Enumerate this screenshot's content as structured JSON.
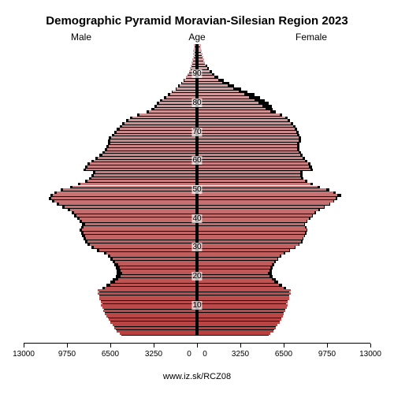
{
  "title": "Demographic Pyramid Moravian-Silesian Region 2023",
  "labels": {
    "male": "Male",
    "age": "Age",
    "female": "Female"
  },
  "source": "www.iz.sk/RCZ08",
  "chart": {
    "type": "population-pyramid",
    "xmax": 13000,
    "xtick_step": 3250,
    "xticks": [
      13000,
      9750,
      6500,
      3250,
      0,
      0,
      3250,
      6500,
      9750,
      13000
    ],
    "age_ticks": [
      10,
      20,
      30,
      40,
      50,
      60,
      70,
      80,
      90
    ],
    "background_color": "#ffffff",
    "shadow_color": "#000000",
    "color_top": "#d8abae",
    "color_bottom": "#b8403f",
    "title_fontsize": 15,
    "label_fontsize": 12,
    "tick_fontsize": 10,
    "ages": [
      {
        "a": 0,
        "m": 5700,
        "f": 5400,
        "ms": 5700,
        "fs": 5400
      },
      {
        "a": 1,
        "m": 5900,
        "f": 5600,
        "ms": 5900,
        "fs": 5600
      },
      {
        "a": 2,
        "m": 6100,
        "f": 5800,
        "ms": 6100,
        "fs": 5800
      },
      {
        "a": 3,
        "m": 6200,
        "f": 5900,
        "ms": 6200,
        "fs": 5900
      },
      {
        "a": 4,
        "m": 6400,
        "f": 6100,
        "ms": 6400,
        "fs": 6100
      },
      {
        "a": 5,
        "m": 6500,
        "f": 6200,
        "ms": 6500,
        "fs": 6200
      },
      {
        "a": 6,
        "m": 6700,
        "f": 6300,
        "ms": 6700,
        "fs": 6300
      },
      {
        "a": 7,
        "m": 6800,
        "f": 6400,
        "ms": 6800,
        "fs": 6400
      },
      {
        "a": 8,
        "m": 6900,
        "f": 6500,
        "ms": 6900,
        "fs": 6500
      },
      {
        "a": 9,
        "m": 7000,
        "f": 6600,
        "ms": 7000,
        "fs": 6600
      },
      {
        "a": 10,
        "m": 7100,
        "f": 6700,
        "ms": 7100,
        "fs": 6700
      },
      {
        "a": 11,
        "m": 7100,
        "f": 6700,
        "ms": 7100,
        "fs": 6700
      },
      {
        "a": 12,
        "m": 7200,
        "f": 6800,
        "ms": 7200,
        "fs": 6800
      },
      {
        "a": 13,
        "m": 7200,
        "f": 6800,
        "ms": 7200,
        "fs": 6800
      },
      {
        "a": 14,
        "m": 7300,
        "f": 6900,
        "ms": 7300,
        "fs": 6900
      },
      {
        "a": 15,
        "m": 7300,
        "f": 6900,
        "ms": 7300,
        "fs": 6900
      },
      {
        "a": 16,
        "m": 6800,
        "f": 6400,
        "ms": 7100,
        "fs": 6700
      },
      {
        "a": 17,
        "m": 6400,
        "f": 6000,
        "ms": 6800,
        "fs": 6400
      },
      {
        "a": 18,
        "m": 6000,
        "f": 5700,
        "ms": 6500,
        "fs": 6100
      },
      {
        "a": 19,
        "m": 5800,
        "f": 5500,
        "ms": 6300,
        "fs": 5900
      },
      {
        "a": 20,
        "m": 5600,
        "f": 5300,
        "ms": 6100,
        "fs": 5700
      },
      {
        "a": 21,
        "m": 5500,
        "f": 5200,
        "ms": 6000,
        "fs": 5600
      },
      {
        "a": 22,
        "m": 5600,
        "f": 5300,
        "ms": 6000,
        "fs": 5600
      },
      {
        "a": 23,
        "m": 5700,
        "f": 5400,
        "ms": 6100,
        "fs": 5700
      },
      {
        "a": 24,
        "m": 5800,
        "f": 5500,
        "ms": 6200,
        "fs": 5800
      },
      {
        "a": 25,
        "m": 6000,
        "f": 5700,
        "ms": 6300,
        "fs": 5900
      },
      {
        "a": 26,
        "m": 6200,
        "f": 5900,
        "ms": 6500,
        "fs": 6100
      },
      {
        "a": 27,
        "m": 6400,
        "f": 6100,
        "ms": 6700,
        "fs": 6300
      },
      {
        "a": 28,
        "m": 6700,
        "f": 6400,
        "ms": 7000,
        "fs": 6600
      },
      {
        "a": 29,
        "m": 7200,
        "f": 6800,
        "ms": 7500,
        "fs": 7000
      },
      {
        "a": 30,
        "m": 7600,
        "f": 7200,
        "ms": 7900,
        "fs": 7400
      },
      {
        "a": 31,
        "m": 7900,
        "f": 7500,
        "ms": 8200,
        "fs": 7700
      },
      {
        "a": 32,
        "m": 8100,
        "f": 7700,
        "ms": 8400,
        "fs": 7900
      },
      {
        "a": 33,
        "m": 8200,
        "f": 7800,
        "ms": 8500,
        "fs": 8000
      },
      {
        "a": 34,
        "m": 8300,
        "f": 7900,
        "ms": 8600,
        "fs": 8100
      },
      {
        "a": 35,
        "m": 8400,
        "f": 8000,
        "ms": 8700,
        "fs": 8200
      },
      {
        "a": 36,
        "m": 8500,
        "f": 8100,
        "ms": 8800,
        "fs": 8300
      },
      {
        "a": 37,
        "m": 8400,
        "f": 8000,
        "ms": 8700,
        "fs": 8200
      },
      {
        "a": 38,
        "m": 8300,
        "f": 7900,
        "ms": 8600,
        "fs": 8100
      },
      {
        "a": 39,
        "m": 8500,
        "f": 8100,
        "ms": 8800,
        "fs": 8300
      },
      {
        "a": 40,
        "m": 8700,
        "f": 8300,
        "ms": 9000,
        "fs": 8500
      },
      {
        "a": 41,
        "m": 8900,
        "f": 8500,
        "ms": 9200,
        "fs": 8700
      },
      {
        "a": 42,
        "m": 9100,
        "f": 8700,
        "ms": 9400,
        "fs": 8900
      },
      {
        "a": 43,
        "m": 9400,
        "f": 9000,
        "ms": 9700,
        "fs": 9200
      },
      {
        "a": 44,
        "m": 9800,
        "f": 9400,
        "ms": 10100,
        "fs": 9600
      },
      {
        "a": 45,
        "m": 10200,
        "f": 9800,
        "ms": 10500,
        "fs": 10000
      },
      {
        "a": 46,
        "m": 10600,
        "f": 10100,
        "ms": 10900,
        "fs": 10300
      },
      {
        "a": 47,
        "m": 10800,
        "f": 10300,
        "ms": 11100,
        "fs": 10500
      },
      {
        "a": 48,
        "m": 10700,
        "f": 10400,
        "ms": 11000,
        "fs": 10800
      },
      {
        "a": 49,
        "m": 10400,
        "f": 10100,
        "ms": 10700,
        "fs": 10400
      },
      {
        "a": 50,
        "m": 9900,
        "f": 9600,
        "ms": 10200,
        "fs": 9900
      },
      {
        "a": 51,
        "m": 9200,
        "f": 8900,
        "ms": 9500,
        "fs": 9200
      },
      {
        "a": 52,
        "m": 8600,
        "f": 8400,
        "ms": 8900,
        "fs": 8700
      },
      {
        "a": 53,
        "m": 8100,
        "f": 8000,
        "ms": 8400,
        "fs": 8300
      },
      {
        "a": 54,
        "m": 7800,
        "f": 7700,
        "ms": 8100,
        "fs": 8000
      },
      {
        "a": 55,
        "m": 7600,
        "f": 7600,
        "ms": 7900,
        "fs": 7900
      },
      {
        "a": 56,
        "m": 7500,
        "f": 7600,
        "ms": 7800,
        "fs": 7900
      },
      {
        "a": 57,
        "m": 8200,
        "f": 8400,
        "ms": 8500,
        "fs": 8700
      },
      {
        "a": 58,
        "m": 8100,
        "f": 8300,
        "ms": 8400,
        "fs": 8600
      },
      {
        "a": 59,
        "m": 7900,
        "f": 8200,
        "ms": 8200,
        "fs": 8500
      },
      {
        "a": 60,
        "m": 7600,
        "f": 8000,
        "ms": 7900,
        "fs": 8300
      },
      {
        "a": 61,
        "m": 7300,
        "f": 7800,
        "ms": 7600,
        "fs": 8100
      },
      {
        "a": 62,
        "m": 7000,
        "f": 7600,
        "ms": 7300,
        "fs": 7900
      },
      {
        "a": 63,
        "m": 6800,
        "f": 7500,
        "ms": 7100,
        "fs": 7800
      },
      {
        "a": 64,
        "m": 6600,
        "f": 7400,
        "ms": 6900,
        "fs": 7700
      },
      {
        "a": 65,
        "m": 6500,
        "f": 7400,
        "ms": 6800,
        "fs": 7700
      },
      {
        "a": 66,
        "m": 6400,
        "f": 7400,
        "ms": 6700,
        "fs": 7700
      },
      {
        "a": 67,
        "m": 6400,
        "f": 7500,
        "ms": 6700,
        "fs": 7800
      },
      {
        "a": 68,
        "m": 6300,
        "f": 7500,
        "ms": 6600,
        "fs": 7800
      },
      {
        "a": 69,
        "m": 6100,
        "f": 7400,
        "ms": 6400,
        "fs": 7700
      },
      {
        "a": 70,
        "m": 5900,
        "f": 7300,
        "ms": 6200,
        "fs": 7600
      },
      {
        "a": 71,
        "m": 5700,
        "f": 7200,
        "ms": 6000,
        "fs": 7500
      },
      {
        "a": 72,
        "m": 5500,
        "f": 7100,
        "ms": 5800,
        "fs": 7400
      },
      {
        "a": 73,
        "m": 5300,
        "f": 6900,
        "ms": 5600,
        "fs": 7200
      },
      {
        "a": 74,
        "m": 5000,
        "f": 6700,
        "ms": 5300,
        "fs": 7000
      },
      {
        "a": 75,
        "m": 4700,
        "f": 6500,
        "ms": 5000,
        "fs": 6800
      },
      {
        "a": 76,
        "m": 4200,
        "f": 6100,
        "ms": 4500,
        "fs": 6400
      },
      {
        "a": 77,
        "m": 3500,
        "f": 5400,
        "ms": 3800,
        "fs": 5900
      },
      {
        "a": 78,
        "m": 3100,
        "f": 5000,
        "ms": 3400,
        "fs": 5700
      },
      {
        "a": 79,
        "m": 2900,
        "f": 4800,
        "ms": 3200,
        "fs": 5600
      },
      {
        "a": 80,
        "m": 2700,
        "f": 4500,
        "ms": 3000,
        "fs": 5400
      },
      {
        "a": 81,
        "m": 2500,
        "f": 4200,
        "ms": 2800,
        "fs": 5100
      },
      {
        "a": 82,
        "m": 2200,
        "f": 3800,
        "ms": 2500,
        "fs": 4700
      },
      {
        "a": 83,
        "m": 1900,
        "f": 3400,
        "ms": 2200,
        "fs": 4300
      },
      {
        "a": 84,
        "m": 1700,
        "f": 3000,
        "ms": 1900,
        "fs": 3800
      },
      {
        "a": 85,
        "m": 1400,
        "f": 2600,
        "ms": 1600,
        "fs": 3300
      },
      {
        "a": 86,
        "m": 1200,
        "f": 2200,
        "ms": 1400,
        "fs": 2800
      },
      {
        "a": 87,
        "m": 1000,
        "f": 1800,
        "ms": 1200,
        "fs": 2400
      },
      {
        "a": 88,
        "m": 800,
        "f": 1500,
        "ms": 1000,
        "fs": 2000
      },
      {
        "a": 89,
        "m": 700,
        "f": 1200,
        "ms": 800,
        "fs": 1600
      },
      {
        "a": 90,
        "m": 600,
        "f": 1000,
        "ms": 700,
        "fs": 1300
      },
      {
        "a": 91,
        "m": 500,
        "f": 800,
        "ms": 600,
        "fs": 1100
      },
      {
        "a": 92,
        "m": 400,
        "f": 650,
        "ms": 500,
        "fs": 900
      },
      {
        "a": 93,
        "m": 350,
        "f": 550,
        "ms": 400,
        "fs": 750
      },
      {
        "a": 94,
        "m": 300,
        "f": 450,
        "ms": 350,
        "fs": 600
      },
      {
        "a": 95,
        "m": 250,
        "f": 400,
        "ms": 300,
        "fs": 500
      },
      {
        "a": 96,
        "m": 200,
        "f": 350,
        "ms": 250,
        "fs": 420
      },
      {
        "a": 97,
        "m": 180,
        "f": 300,
        "ms": 200,
        "fs": 360
      },
      {
        "a": 98,
        "m": 150,
        "f": 250,
        "ms": 180,
        "fs": 300
      },
      {
        "a": 99,
        "m": 130,
        "f": 200,
        "ms": 160,
        "fs": 250
      },
      {
        "a": 100,
        "m": 120,
        "f": 180,
        "ms": 150,
        "fs": 220
      }
    ]
  }
}
